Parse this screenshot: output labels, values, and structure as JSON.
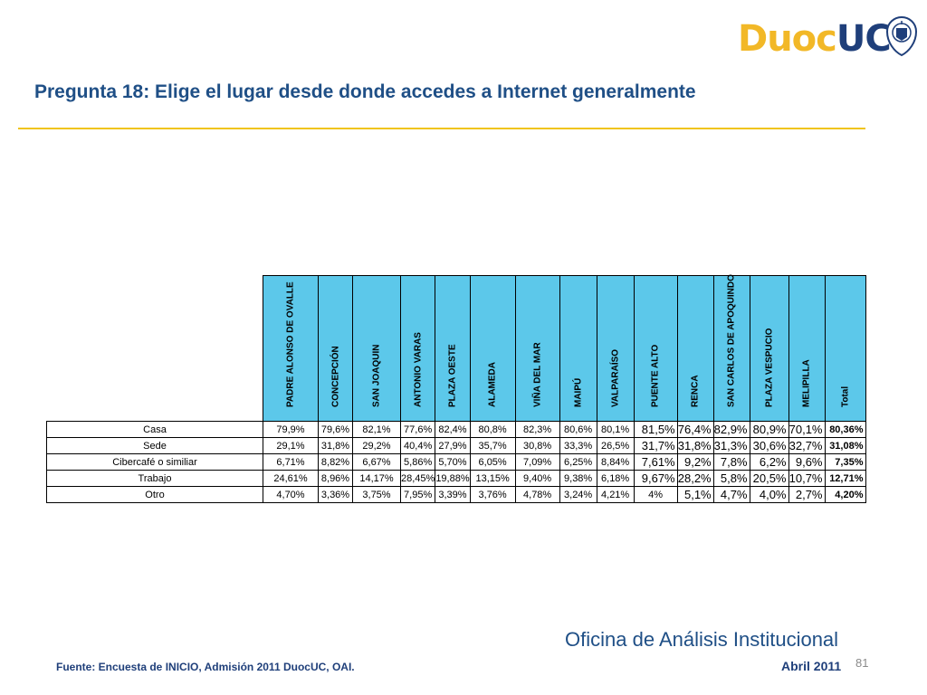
{
  "logo": {
    "part1": "Duoc",
    "part2": "UC"
  },
  "title": "Pregunta 18: Elige el lugar desde donde accedes a Internet generalmente",
  "table": {
    "columns": [
      "PADRE ALONSO DE OVALLE",
      "CONCEPCIÓN",
      "SAN JOAQUIN",
      "ANTONIO VARAS",
      "PLAZA OESTE",
      "ALAMEDA",
      "VIÑA DEL MAR",
      "MAIPÚ",
      "VALPARAÍSO",
      "PUENTE ALTO",
      "RENCA",
      "SAN CARLOS DE APOQUINDO",
      "PLAZA VESPUCIO",
      "MELIPILLA",
      "Total"
    ],
    "rows": [
      {
        "label": "Casa",
        "values": [
          "79,9%",
          "79,6%",
          "82,1%",
          "77,6%",
          "82,4%",
          "80,8%",
          "82,3%",
          "80,6%",
          "80,1%",
          "81,5%",
          "76,4%",
          "82,9%",
          "80,9%",
          "70,1%",
          "80,36%"
        ]
      },
      {
        "label": "Sede",
        "values": [
          "29,1%",
          "31,8%",
          "29,2%",
          "40,4%",
          "27,9%",
          "35,7%",
          "30,8%",
          "33,3%",
          "26,5%",
          "31,7%",
          "31,8%",
          "31,3%",
          "30,6%",
          "32,7%",
          "31,08%"
        ]
      },
      {
        "label": "Cibercafé o similiar",
        "values": [
          "6,71%",
          "8,82%",
          "6,67%",
          "5,86%",
          "5,70%",
          "6,05%",
          "7,09%",
          "6,25%",
          "8,84%",
          "7,61%",
          "9,2%",
          "7,8%",
          "6,2%",
          "9,6%",
          "7,35%"
        ]
      },
      {
        "label": "Trabajo",
        "values": [
          "24,61%",
          "8,96%",
          "14,17%",
          "28,45%",
          "19,88%",
          "13,15%",
          "9,40%",
          "9,38%",
          "6,18%",
          "9,67%",
          "28,2%",
          "5,8%",
          "20,5%",
          "10,7%",
          "12,71%"
        ]
      },
      {
        "label": "Otro",
        "values": [
          "4,70%",
          "3,36%",
          "3,75%",
          "7,95%",
          "3,39%",
          "3,76%",
          "4,78%",
          "3,24%",
          "4,21%",
          "4%",
          "5,1%",
          "4,7%",
          "4,0%",
          "2,7%",
          "4,20%"
        ]
      }
    ]
  },
  "footer": {
    "office": "Oficina de Análisis Institucional",
    "source": "Fuente: Encuesta de INICIO, Admisión 2011 DuocUC, OAI.",
    "date": "Abril 2011",
    "page": "81"
  }
}
